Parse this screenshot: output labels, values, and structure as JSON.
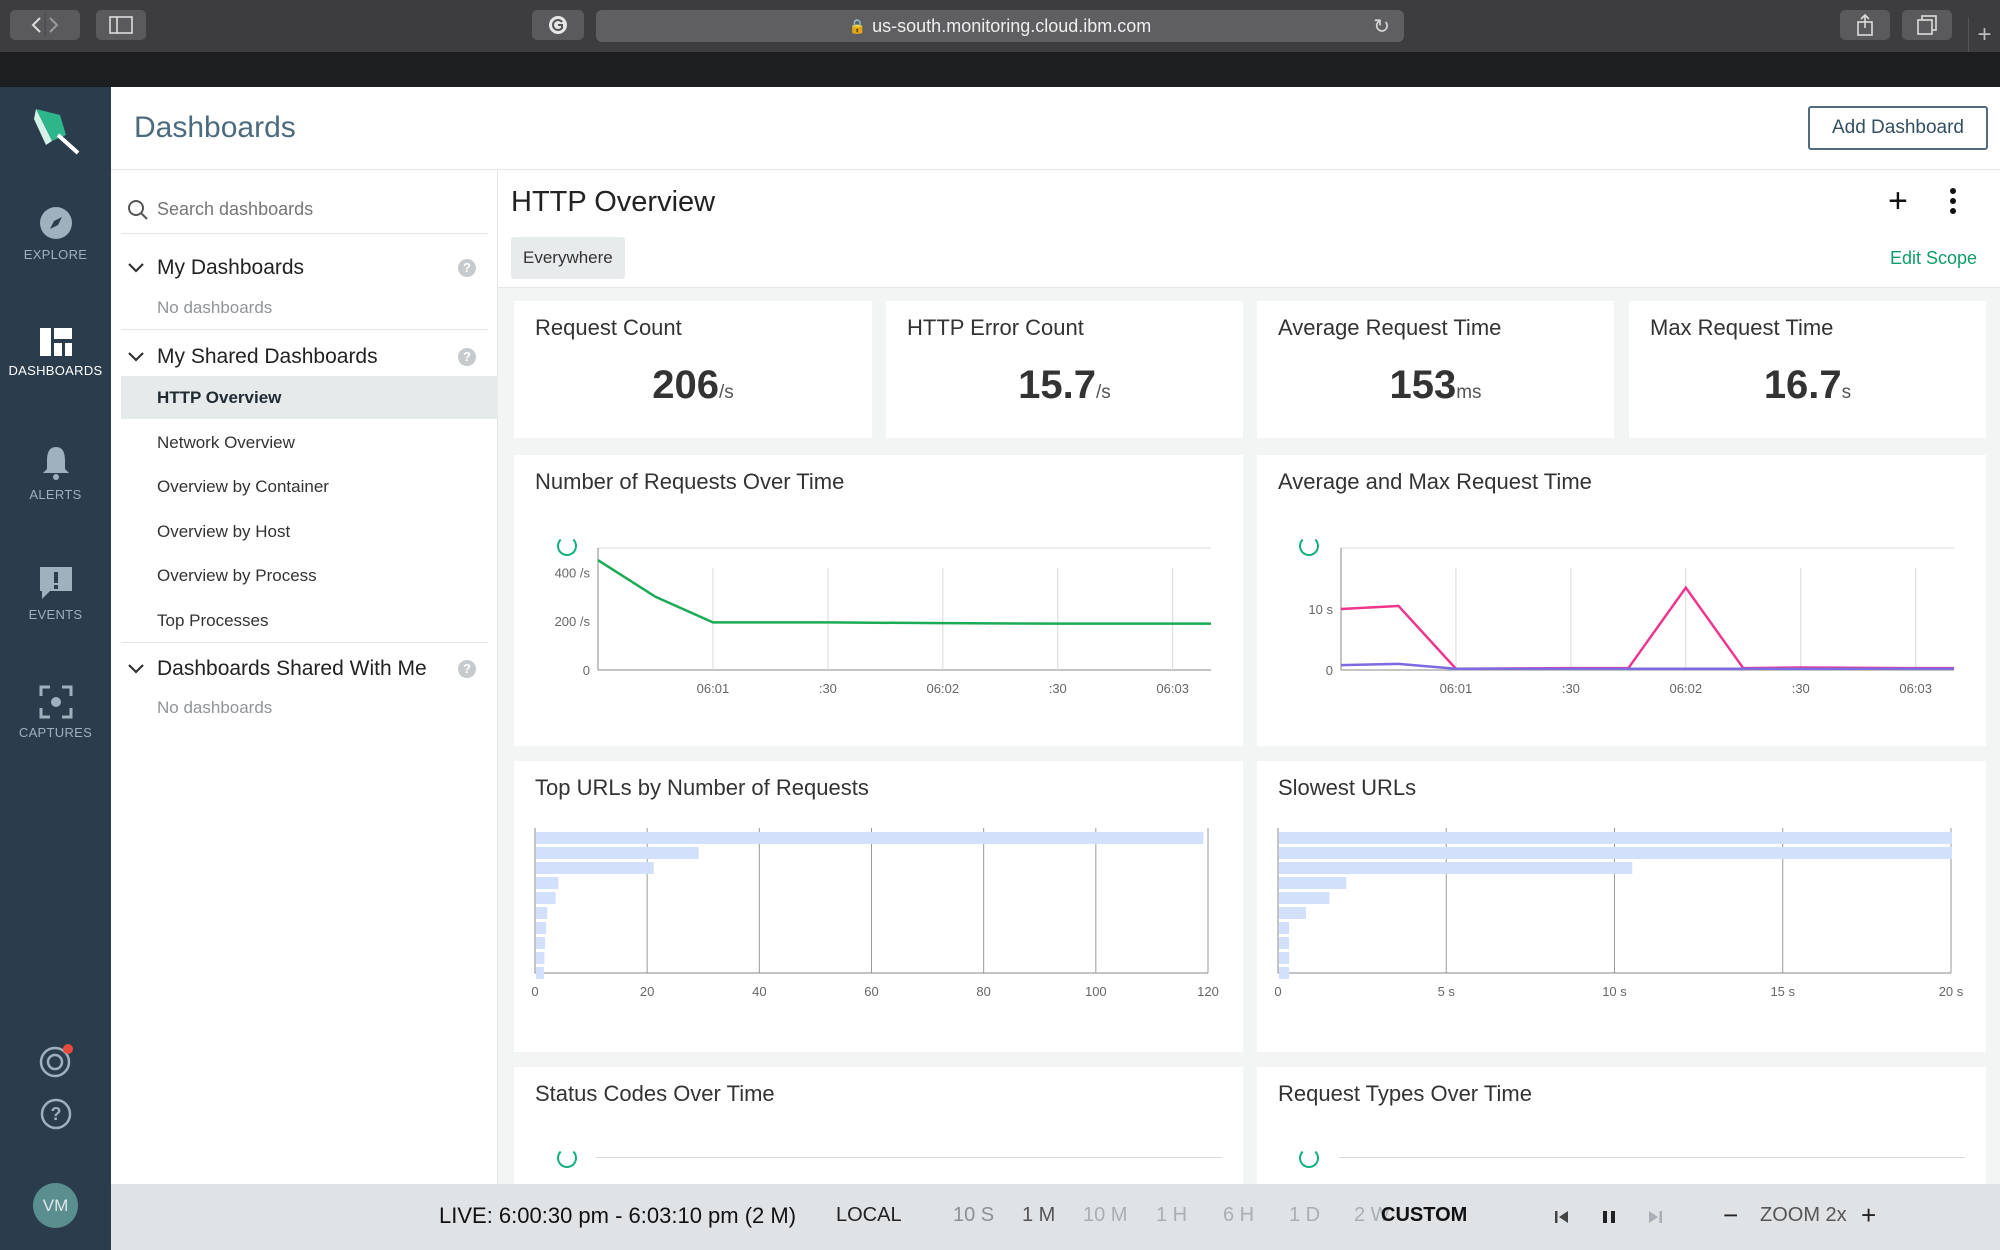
{
  "browser": {
    "url": "us-south.monitoring.cloud.ibm.com"
  },
  "nav": {
    "items": [
      {
        "label": "EXPLORE",
        "icon": "compass-icon",
        "active": false
      },
      {
        "label": "DASHBOARDS",
        "icon": "dashboard-icon",
        "active": true
      },
      {
        "label": "ALERTS",
        "icon": "bell-icon",
        "active": false
      },
      {
        "label": "EVENTS",
        "icon": "event-icon",
        "active": false
      },
      {
        "label": "CAPTURES",
        "icon": "capture-icon",
        "active": false
      }
    ],
    "avatar": "VM"
  },
  "header": {
    "title": "Dashboards",
    "add_button": "Add Dashboard"
  },
  "sidebar": {
    "search_placeholder": "Search dashboards",
    "sections": [
      {
        "title": "My Dashboards",
        "empty": "No dashboards"
      },
      {
        "title": "My Shared Dashboards",
        "items": [
          "HTTP Overview",
          "Network Overview",
          "Overview by Container",
          "Overview by Host",
          "Overview by Process",
          "Top Processes"
        ],
        "active": "HTTP Overview"
      },
      {
        "title": "Dashboards Shared With Me",
        "empty": "No dashboards"
      }
    ]
  },
  "main": {
    "title": "HTTP Overview",
    "scope": "Everywhere",
    "edit_scope": "Edit Scope",
    "stats": [
      {
        "title": "Request Count",
        "value": "206",
        "unit": "/s"
      },
      {
        "title": "HTTP Error Count",
        "value": "15.7",
        "unit": "/s"
      },
      {
        "title": "Average Request Time",
        "value": "153",
        "unit": "ms"
      },
      {
        "title": "Max Request Time",
        "value": "16.7",
        "unit": "s"
      }
    ],
    "panels": {
      "requests_over_time": "Number of Requests Over Time",
      "avg_max_time": "Average and Max Request Time",
      "top_urls": "Top URLs by Number of Requests",
      "slowest_urls": "Slowest URLs",
      "status_codes": "Status Codes Over Time",
      "request_types": "Request Types Over Time"
    },
    "colors": {
      "accent": "#12b07a",
      "line_green": "#1aab55",
      "line_pink": "#f0358f",
      "line_purple": "#7b6ae0",
      "bar_blue": "#d3e0fb"
    }
  },
  "chart_data": [
    {
      "type": "line",
      "title": "Number of Requests Over Time",
      "x": [
        "06:00:30",
        "06:00:45",
        "06:01:00",
        "06:01:30",
        "06:02:00",
        "06:02:30",
        "06:03:00",
        "06:03:10"
      ],
      "x_tick_labels": [
        "06:01",
        ":30",
        "06:02",
        ":30",
        "06:03"
      ],
      "y_tick_labels": [
        "0",
        "200 /s",
        "400 /s"
      ],
      "ylim": [
        0,
        500
      ],
      "series": [
        {
          "values": [
            450,
            300,
            195,
            195,
            192,
            190,
            190,
            190
          ]
        }
      ]
    },
    {
      "type": "line",
      "title": "Average and Max Request Time",
      "x": [
        "06:00:30",
        "06:00:45",
        "06:01:00",
        "06:01:30",
        "06:01:45",
        "06:02:00",
        "06:02:15",
        "06:02:30",
        "06:03:00",
        "06:03:10"
      ],
      "x_tick_labels": [
        "06:01",
        ":30",
        "06:02",
        ":30",
        "06:03"
      ],
      "y_tick_labels": [
        "0",
        "10 s"
      ],
      "ylim": [
        0,
        20
      ],
      "series": [
        {
          "values": [
            10,
            10.5,
            0.2,
            0.3,
            0.3,
            13.5,
            0.3,
            0.4,
            0.3,
            0.3
          ]
        },
        {
          "values": [
            0.8,
            1.0,
            0.2,
            0.2,
            0.2,
            0.2,
            0.2,
            0.2,
            0.2,
            0.2
          ]
        }
      ]
    },
    {
      "type": "bar",
      "title": "Top URLs by Number of Requests",
      "orientation": "horizontal",
      "values": [
        119,
        29,
        21,
        4,
        3.5,
        2,
        1.8,
        1.6,
        1.5,
        1.4
      ],
      "x_tick_labels": [
        "0",
        "20",
        "40",
        "60",
        "80",
        "100",
        "120"
      ],
      "xlim": [
        0,
        120
      ]
    },
    {
      "type": "bar",
      "title": "Slowest URLs",
      "orientation": "horizontal",
      "values": [
        20,
        20,
        10.5,
        2,
        1.5,
        0.8,
        0.3,
        0.3,
        0.3,
        0.3
      ],
      "x_tick_labels": [
        "0",
        "5 s",
        "10 s",
        "15 s",
        "20 s"
      ],
      "xlim": [
        0,
        20
      ]
    }
  ],
  "footer": {
    "live": "LIVE: 6:00:30 pm - 6:03:10 pm (2 M)",
    "local": "LOCAL",
    "ranges": [
      "10 S",
      "1 M",
      "10 M",
      "1 H",
      "6 H",
      "1 D",
      "2 W"
    ],
    "custom": "CUSTOM",
    "zoom": "ZOOM 2x"
  }
}
